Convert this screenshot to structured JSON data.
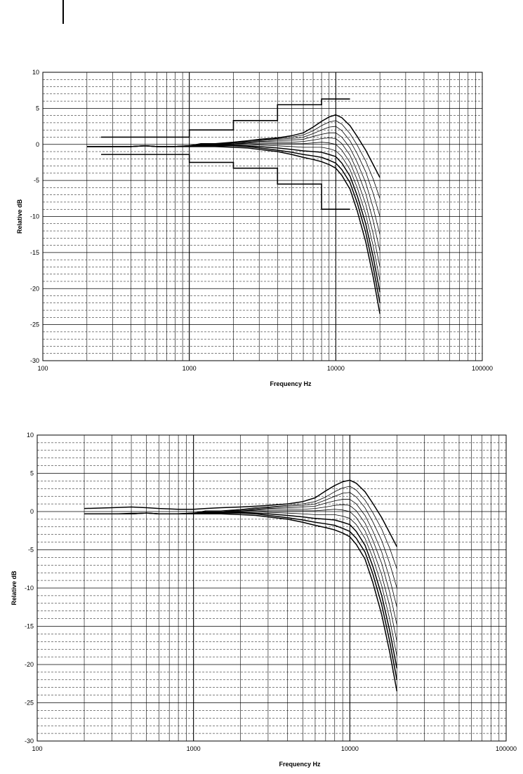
{
  "chart_data": [
    {
      "type": "line",
      "xlabel": "Frequency Hz",
      "ylabel": "Relative dB",
      "xscale": "log",
      "xlim": [
        100,
        100000
      ],
      "ylim": [
        -30,
        10
      ],
      "grid": true,
      "xticks": [
        "100",
        "1000",
        "10000",
        "100000"
      ],
      "yticks": [
        "10",
        "5",
        "0",
        "-5",
        "-10",
        "-15",
        "-20",
        "-25",
        "-30"
      ],
      "tolerance_upper": {
        "x": [
          250,
          1000,
          1000,
          2000,
          2000,
          4000,
          4000,
          8000,
          8000,
          12500
        ],
        "y": [
          1,
          1,
          2,
          2,
          3.3,
          3.3,
          5.5,
          5.5,
          6.3,
          6.3
        ]
      },
      "tolerance_lower": {
        "x": [
          250,
          1000,
          1000,
          2000,
          2000,
          4000,
          4000,
          8000,
          8000,
          12500
        ],
        "y": [
          -1.4,
          -1.4,
          -2.5,
          -2.5,
          -3.3,
          -3.3,
          -5.5,
          -5.5,
          -9,
          -9
        ]
      },
      "series_x": [
        200,
        300,
        400,
        500,
        600,
        800,
        1000,
        1200,
        1500,
        2000,
        2500,
        3000,
        4000,
        5000,
        6000,
        7000,
        8000,
        9000,
        10000,
        11000,
        12500,
        14000,
        16000,
        18000,
        20000
      ],
      "series": [
        {
          "values": [
            -0.3,
            -0.3,
            -0.3,
            -0.2,
            -0.3,
            -0.3,
            -0.2,
            0.1,
            0.1,
            0.3,
            0.5,
            0.7,
            0.9,
            1.2,
            1.6,
            2.4,
            3.2,
            3.8,
            4.1,
            3.7,
            2.6,
            1.1,
            -0.8,
            -2.8,
            -4.6
          ]
        },
        {
          "values": [
            -0.3,
            -0.3,
            -0.3,
            -0.2,
            -0.3,
            -0.3,
            -0.2,
            0.1,
            0.1,
            0.3,
            0.5,
            0.6,
            0.8,
            1.0,
            1.3,
            1.9,
            2.6,
            3.1,
            3.3,
            2.8,
            1.5,
            -0.1,
            -2.3,
            -4.8,
            -7.5
          ]
        },
        {
          "values": [
            -0.3,
            -0.3,
            -0.3,
            -0.2,
            -0.3,
            -0.3,
            -0.2,
            0.1,
            0.1,
            0.2,
            0.4,
            0.5,
            0.7,
            0.8,
            1.0,
            1.5,
            2.0,
            2.4,
            2.5,
            1.9,
            0.5,
            -1.3,
            -3.8,
            -6.8,
            -10.0
          ]
        },
        {
          "values": [
            -0.3,
            -0.3,
            -0.3,
            -0.2,
            -0.3,
            -0.3,
            -0.2,
            0.0,
            0.0,
            0.2,
            0.3,
            0.4,
            0.5,
            0.6,
            0.7,
            1.1,
            1.4,
            1.6,
            1.6,
            1.0,
            -0.5,
            -2.5,
            -5.3,
            -8.8,
            -12.5
          ]
        },
        {
          "values": [
            -0.3,
            -0.3,
            -0.3,
            -0.2,
            -0.3,
            -0.3,
            -0.2,
            0.0,
            0.0,
            0.1,
            0.2,
            0.3,
            0.3,
            0.3,
            0.4,
            0.6,
            0.8,
            0.9,
            0.8,
            0.1,
            -1.5,
            -3.7,
            -6.8,
            -10.6,
            -14.8
          ]
        },
        {
          "values": [
            -0.3,
            -0.3,
            -0.3,
            -0.2,
            -0.3,
            -0.3,
            -0.2,
            0.0,
            0.0,
            0.1,
            0.1,
            0.1,
            0.1,
            0.1,
            0.1,
            0.2,
            0.3,
            0.2,
            0.0,
            -0.8,
            -2.5,
            -4.9,
            -8.3,
            -12.4,
            -17.0
          ]
        },
        {
          "values": [
            -0.3,
            -0.3,
            -0.3,
            -0.2,
            -0.3,
            -0.3,
            -0.2,
            -0.1,
            -0.1,
            0.0,
            0.0,
            -0.1,
            -0.2,
            -0.3,
            -0.4,
            -0.4,
            -0.4,
            -0.6,
            -0.9,
            -1.7,
            -3.5,
            -6.0,
            -9.7,
            -14.1,
            -18.9
          ]
        },
        {
          "values": [
            -0.3,
            -0.3,
            -0.3,
            -0.2,
            -0.3,
            -0.3,
            -0.2,
            -0.1,
            -0.1,
            -0.1,
            -0.2,
            -0.3,
            -0.5,
            -0.7,
            -0.9,
            -1.0,
            -1.1,
            -1.4,
            -1.7,
            -2.6,
            -4.4,
            -7.1,
            -11.0,
            -15.6,
            -20.5
          ]
        },
        {
          "values": [
            -0.3,
            -0.3,
            -0.3,
            -0.2,
            -0.3,
            -0.3,
            -0.2,
            -0.2,
            -0.2,
            -0.2,
            -0.3,
            -0.5,
            -0.8,
            -1.1,
            -1.4,
            -1.6,
            -1.8,
            -2.2,
            -2.6,
            -3.5,
            -5.3,
            -8.1,
            -12.2,
            -17.0,
            -22.0
          ]
        },
        {
          "values": [
            -0.3,
            -0.3,
            -0.3,
            -0.2,
            -0.3,
            -0.3,
            -0.3,
            -0.3,
            -0.3,
            -0.4,
            -0.5,
            -0.7,
            -1.0,
            -1.4,
            -1.8,
            -2.1,
            -2.4,
            -2.8,
            -3.3,
            -4.3,
            -6.2,
            -9.2,
            -13.5,
            -18.4,
            -23.5
          ]
        }
      ]
    },
    {
      "type": "line",
      "xlabel": "Frequency Hz",
      "ylabel": "Relative dB",
      "xscale": "log",
      "xlim": [
        100,
        100000
      ],
      "ylim": [
        -30,
        10
      ],
      "grid": true,
      "xticks": [
        "100",
        "1000",
        "10000",
        "100000"
      ],
      "yticks": [
        "10",
        "5",
        "0",
        "-5",
        "-10",
        "-15",
        "-20",
        "-25",
        "-30"
      ],
      "series_x": [
        200,
        300,
        400,
        500,
        600,
        800,
        1000,
        1200,
        1500,
        2000,
        2500,
        3000,
        4000,
        5000,
        6000,
        7000,
        8000,
        9000,
        10000,
        11000,
        12500,
        14000,
        16000,
        18000,
        20000
      ],
      "series": [
        {
          "values": [
            0.4,
            0.5,
            0.6,
            0.5,
            0.4,
            0.3,
            0.3,
            0.4,
            0.5,
            0.6,
            0.7,
            0.8,
            1.0,
            1.3,
            1.8,
            2.7,
            3.4,
            3.9,
            4.1,
            3.7,
            2.6,
            1.1,
            -0.8,
            -2.8,
            -4.6
          ]
        },
        {
          "values": [
            -0.3,
            -0.3,
            -0.2,
            -0.2,
            -0.3,
            -0.3,
            -0.2,
            0.1,
            0.1,
            0.3,
            0.5,
            0.6,
            0.8,
            1.0,
            1.3,
            1.9,
            2.6,
            3.1,
            3.3,
            2.8,
            1.5,
            -0.1,
            -2.3,
            -4.8,
            -7.5
          ]
        },
        {
          "values": [
            -0.3,
            -0.3,
            -0.3,
            -0.2,
            -0.3,
            -0.3,
            -0.2,
            0.1,
            0.1,
            0.2,
            0.4,
            0.5,
            0.7,
            0.8,
            1.0,
            1.5,
            2.0,
            2.4,
            2.5,
            1.9,
            0.5,
            -1.3,
            -3.8,
            -6.8,
            -10.0
          ]
        },
        {
          "values": [
            -0.3,
            -0.3,
            -0.3,
            -0.2,
            -0.3,
            -0.3,
            -0.2,
            0.0,
            0.0,
            0.2,
            0.3,
            0.4,
            0.5,
            0.6,
            0.7,
            1.1,
            1.4,
            1.6,
            1.6,
            1.0,
            -0.5,
            -2.5,
            -5.3,
            -8.8,
            -12.5
          ]
        },
        {
          "values": [
            -0.3,
            -0.3,
            -0.3,
            -0.2,
            -0.3,
            -0.3,
            -0.2,
            0.0,
            0.0,
            0.1,
            0.2,
            0.3,
            0.3,
            0.3,
            0.4,
            0.6,
            0.8,
            0.9,
            0.8,
            0.1,
            -1.5,
            -3.7,
            -6.8,
            -10.6,
            -14.8
          ]
        },
        {
          "values": [
            -0.3,
            -0.3,
            -0.3,
            -0.2,
            -0.3,
            -0.3,
            -0.2,
            0.0,
            0.0,
            0.1,
            0.1,
            0.1,
            0.1,
            0.1,
            0.1,
            0.2,
            0.3,
            0.2,
            0.0,
            -0.8,
            -2.5,
            -4.9,
            -8.3,
            -12.4,
            -17.0
          ]
        },
        {
          "values": [
            -0.3,
            -0.3,
            -0.3,
            -0.2,
            -0.3,
            -0.3,
            -0.2,
            -0.1,
            -0.1,
            0.0,
            0.0,
            -0.1,
            -0.2,
            -0.3,
            -0.4,
            -0.4,
            -0.4,
            -0.6,
            -0.9,
            -1.7,
            -3.5,
            -6.0,
            -9.7,
            -14.1,
            -18.9
          ]
        },
        {
          "values": [
            -0.3,
            -0.3,
            -0.3,
            -0.2,
            -0.3,
            -0.3,
            -0.2,
            -0.1,
            -0.1,
            -0.1,
            -0.2,
            -0.3,
            -0.5,
            -0.7,
            -0.9,
            -1.0,
            -1.1,
            -1.4,
            -1.7,
            -2.6,
            -4.4,
            -7.1,
            -11.0,
            -15.6,
            -20.5
          ]
        },
        {
          "values": [
            -0.3,
            -0.3,
            -0.3,
            -0.2,
            -0.3,
            -0.3,
            -0.2,
            -0.2,
            -0.2,
            -0.2,
            -0.3,
            -0.5,
            -0.8,
            -1.1,
            -1.4,
            -1.6,
            -1.8,
            -2.2,
            -2.6,
            -3.5,
            -5.3,
            -8.1,
            -12.2,
            -17.0,
            -22.0
          ]
        },
        {
          "values": [
            -0.3,
            -0.3,
            -0.3,
            -0.2,
            -0.3,
            -0.3,
            -0.3,
            -0.3,
            -0.3,
            -0.4,
            -0.5,
            -0.7,
            -1.0,
            -1.4,
            -1.8,
            -2.1,
            -2.4,
            -2.8,
            -3.3,
            -4.3,
            -6.2,
            -9.2,
            -13.5,
            -18.4,
            -23.5
          ]
        }
      ]
    }
  ]
}
